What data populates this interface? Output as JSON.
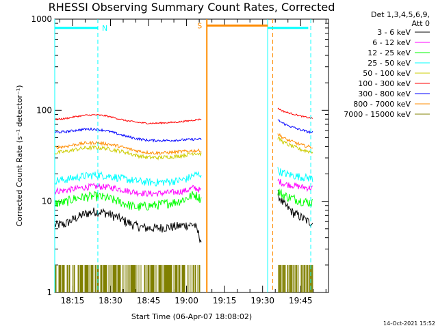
{
  "chart_data": {
    "type": "line",
    "title": "RHESSI Observing Summary Count Rates, Corrected",
    "xlabel": "Start Time (06-Apr-07 18:08:02)",
    "ylabel": "Corrected Count Rate (s⁻¹ detector⁻¹)",
    "ylog": true,
    "ylim": [
      1,
      1000
    ],
    "yticks": [
      {
        "value": 1,
        "label": "1"
      },
      {
        "value": 10,
        "label": "10"
      },
      {
        "value": 100,
        "label": "100"
      },
      {
        "value": 1000,
        "label": "1000"
      }
    ],
    "xlim_min": [
      8.0,
      116.0
    ],
    "xticks": [
      {
        "value": 15,
        "label": "18:15"
      },
      {
        "value": 30,
        "label": "18:30"
      },
      {
        "value": 45,
        "label": "18:45"
      },
      {
        "value": 60,
        "label": "19:00"
      },
      {
        "value": 75,
        "label": "19:15"
      },
      {
        "value": 90,
        "label": "19:30"
      },
      {
        "value": 105,
        "label": "19:45"
      }
    ],
    "legend_header": [
      "Det 1,3,4,5,6,9,",
      "Att 0"
    ],
    "legend_placement": "right",
    "series": [
      {
        "name": "3 - 6 keV",
        "color": "#000000",
        "segments": [
          {
            "x": [
              8,
              12,
              16,
              20,
              24,
              28,
              32,
              36,
              40,
              44,
              48,
              52,
              56,
              60,
              63,
              66
            ],
            "y": [
              5.5,
              5.6,
              6.5,
              7.3,
              7.8,
              7.5,
              6.8,
              6.0,
              5.4,
              5.1,
              5.1,
              5.2,
              5.3,
              5.5,
              5.6,
              3.5
            ]
          },
          {
            "x": [
              96,
              98,
              100,
              102,
              104,
              106,
              108,
              110
            ],
            "y": [
              12,
              9.5,
              8.5,
              7.5,
              7.0,
              6.5,
              6.0,
              5.8
            ]
          }
        ]
      },
      {
        "name": "6 - 12 keV",
        "color": "#ff00ff",
        "segments": [
          {
            "x": [
              8,
              12,
              16,
              20,
              24,
              28,
              32,
              36,
              40,
              44,
              48,
              52,
              56,
              60,
              63,
              66
            ],
            "y": [
              13,
              13.2,
              13.7,
              14.3,
              14.6,
              14.4,
              14.0,
              13.2,
              12.6,
              12.2,
              12.2,
              12.4,
              12.6,
              13.2,
              14.2,
              13
            ]
          },
          {
            "x": [
              96,
              98,
              100,
              102,
              104,
              106,
              108,
              110
            ],
            "y": [
              17,
              15.8,
              15.3,
              15.0,
              14.6,
              14.3,
              14.1,
              14.0
            ]
          }
        ]
      },
      {
        "name": "12 - 25 keV",
        "color": "#00ff00",
        "segments": [
          {
            "x": [
              8,
              12,
              16,
              20,
              24,
              28,
              32,
              36,
              40,
              44,
              48,
              52,
              56,
              60,
              63,
              66
            ],
            "y": [
              9.5,
              9.8,
              10.8,
              11.2,
              11.4,
              11.0,
              10.2,
              9.4,
              8.6,
              8.9,
              9.1,
              9.5,
              9.9,
              10.8,
              12.0,
              10.5
            ]
          },
          {
            "x": [
              96,
              98,
              100,
              102,
              104,
              106,
              108,
              110
            ],
            "y": [
              13,
              11.8,
              11.2,
              10.8,
              10.4,
              10.0,
              9.8,
              9.6
            ]
          }
        ]
      },
      {
        "name": "25 - 50 keV",
        "color": "#00ffff",
        "segments": [
          {
            "x": [
              8,
              12,
              16,
              20,
              24,
              28,
              32,
              36,
              40,
              44,
              48,
              52,
              56,
              60,
              63,
              66
            ],
            "y": [
              17,
              17.3,
              18.2,
              19.0,
              19.5,
              19.2,
              18.5,
              17.5,
              16.8,
              16.3,
              16.2,
              16.4,
              16.8,
              17.6,
              19.5,
              20
            ]
          },
          {
            "x": [
              96,
              98,
              100,
              102,
              104,
              106,
              108,
              110
            ],
            "y": [
              22,
              20.5,
              19.8,
              19.3,
              18.8,
              18.4,
              18.1,
              17.8
            ]
          }
        ]
      },
      {
        "name": "50 - 100 keV",
        "color": "#cccc00",
        "segments": [
          {
            "x": [
              8,
              12,
              16,
              20,
              24,
              28,
              32,
              36,
              40,
              44,
              48,
              52,
              56,
              60,
              63,
              66
            ],
            "y": [
              34,
              35,
              37,
              38.5,
              39,
              38.2,
              36.5,
              34.5,
              32,
              30.5,
              30.2,
              30.6,
              31.2,
              32.5,
              34,
              33
            ]
          },
          {
            "x": [
              96,
              98,
              100,
              102,
              104,
              106,
              108,
              110
            ],
            "y": [
              50,
              45,
              42,
              40,
              38,
              36.5,
              35.5,
              35
            ]
          }
        ]
      },
      {
        "name": "100 - 300 keV",
        "color": "#ff0000",
        "segments": [
          {
            "x": [
              8,
              12,
              16,
              20,
              24,
              28,
              32,
              36,
              40,
              44,
              48,
              52,
              56,
              60,
              63,
              66
            ],
            "y": [
              79,
              81,
              85,
              88,
              89,
              87,
              82,
              77,
              74,
              72,
              72,
              73,
              74,
              76,
              78,
              80
            ]
          },
          {
            "x": [
              96,
              98,
              100,
              102,
              104,
              106,
              108,
              110
            ],
            "y": [
              105,
              98,
              94,
              91,
              88,
              85,
              83,
              81
            ]
          }
        ]
      },
      {
        "name": "300 - 800 keV",
        "color": "#0000ff",
        "segments": [
          {
            "x": [
              8,
              12,
              16,
              20,
              24,
              28,
              32,
              36,
              40,
              44,
              48,
              52,
              56,
              60,
              63,
              66
            ],
            "y": [
              57,
              58,
              60,
              62,
              62,
              60,
              56,
              52,
              49,
              47,
              46.5,
              46.5,
              47,
              47.5,
              48,
              48
            ]
          },
          {
            "x": [
              96,
              98,
              100,
              102,
              104,
              106,
              108,
              110
            ],
            "y": [
              78,
              72,
              68,
              65,
              62,
              60,
              58,
              57
            ]
          }
        ]
      },
      {
        "name": "800 - 7000 keV",
        "color": "#ff8c00",
        "segments": [
          {
            "x": [
              8,
              12,
              16,
              20,
              24,
              28,
              32,
              36,
              40,
              44,
              48,
              52,
              56,
              60,
              63,
              66
            ],
            "y": [
              39,
              40,
              42,
              43.5,
              44,
              43,
              41,
              38.5,
              36,
              34.5,
              34,
              34.2,
              34.8,
              35.5,
              36,
              36
            ]
          },
          {
            "x": [
              96,
              98,
              100,
              102,
              104,
              106,
              108,
              110
            ],
            "y": [
              55,
              50,
              47,
              45,
              43,
              41,
              40,
              39
            ]
          }
        ]
      },
      {
        "name": "7000 - 15000 keV",
        "color": "#808000",
        "style": "bars",
        "segments": [
          {
            "x": [
              8,
              20,
              21,
              30,
              31,
              49,
              50,
              66
            ],
            "y": [
              2,
              2,
              1,
              1,
              2,
              2,
              1,
              1
            ]
          },
          {
            "x": [
              96,
              110
            ],
            "y": [
              2,
              2
            ]
          }
        ]
      }
    ],
    "cyan_bars": [
      {
        "x_start": 8,
        "x_end": 25,
        "y": 800,
        "label": "N"
      },
      {
        "x_start": 92,
        "x_end": 108,
        "y": 800,
        "label": ""
      }
    ],
    "orange_bar": {
      "x_start": 68,
      "x_end": 92,
      "y": 850,
      "label": "S"
    },
    "cyan_vlines_solid": [
      8,
      92
    ],
    "cyan_vlines_dashed": [
      25,
      109
    ],
    "orange_vlines_solid": [
      68
    ],
    "orange_vlines_dashed": [
      94
    ],
    "gap_start": 66,
    "gap_end": 96
  },
  "footer": {
    "timestamp": "14-Oct-2021 15:52"
  },
  "colors": {
    "background": "#ffffff",
    "axis": "#000000"
  }
}
